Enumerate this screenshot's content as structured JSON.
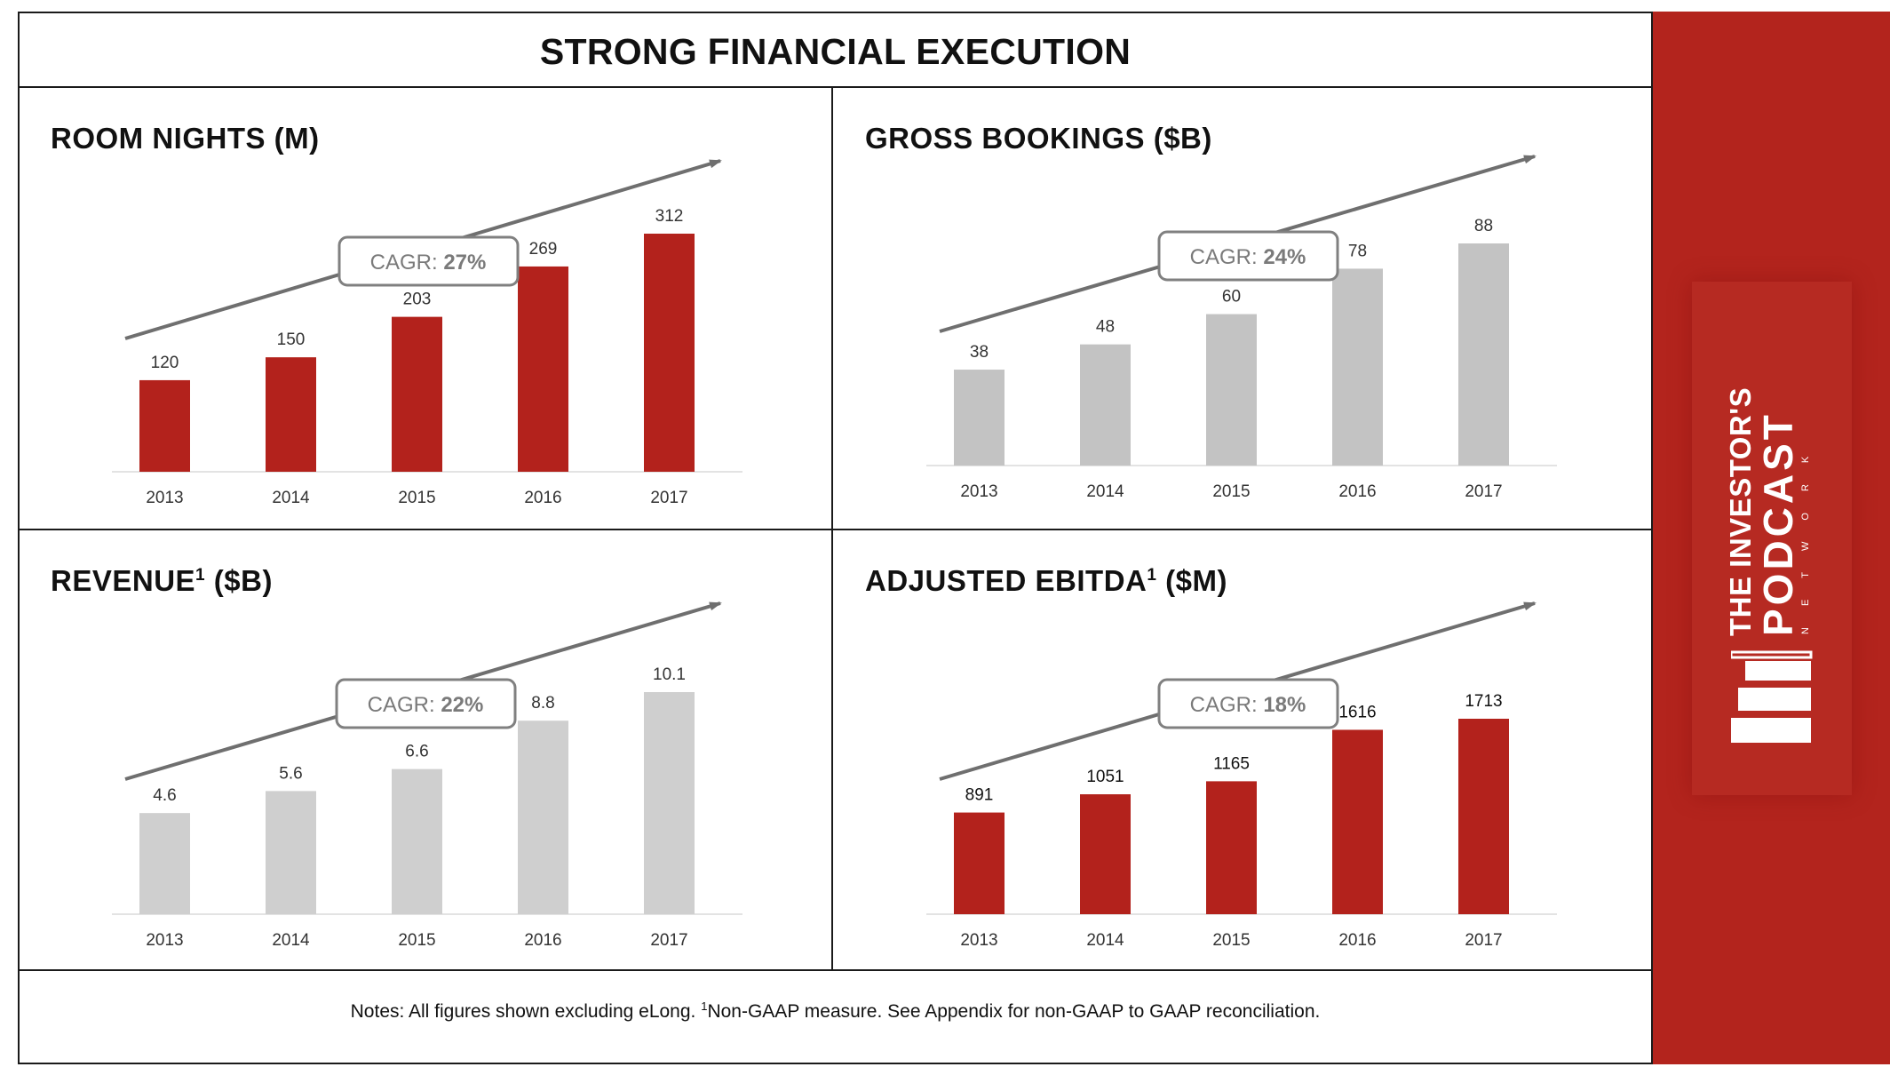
{
  "title": "STRONG FINANCIAL EXECUTION",
  "footnote": {
    "before": "Notes: All figures shown excluding eLong. ",
    "sup": "1",
    "after": "Non-GAAP measure. See Appendix for non-GAAP to GAAP reconciliation."
  },
  "colors": {
    "red": "#b3221c",
    "gray": "#c3c3c3",
    "arrow": "#6f6f6f",
    "sidebar": "#b3241d"
  },
  "logo": {
    "line1": "THE INVESTOR'S",
    "line2": "PODCAST",
    "line3": "NETWORK",
    "icon": "books-podcast-icon"
  },
  "chart_data": [
    {
      "type": "bar",
      "title_main": "ROOM NIGHTS",
      "title_sup": "",
      "title_unit": " (M)",
      "categories": [
        "2013",
        "2014",
        "2015",
        "2016",
        "2017"
      ],
      "values": [
        120,
        150,
        203,
        269,
        312
      ],
      "value_labels": [
        "120",
        "150",
        "203",
        "269",
        "312"
      ],
      "cagr_label": "CAGR: ",
      "cagr_value": "27%",
      "bar_color": "#b3221c",
      "label_color": "#333333"
    },
    {
      "type": "bar",
      "title_main": "GROSS BOOKINGS",
      "title_sup": "",
      "title_unit": " ($B)",
      "categories": [
        "2013",
        "2014",
        "2015",
        "2016",
        "2017"
      ],
      "values": [
        38,
        48,
        60,
        78,
        88
      ],
      "value_labels": [
        "38",
        "48",
        "60",
        "78",
        "88"
      ],
      "cagr_label": "CAGR: ",
      "cagr_value": "24%",
      "bar_color": "#c3c3c3",
      "label_color": "#333333"
    },
    {
      "type": "bar",
      "title_main": "REVENUE",
      "title_sup": "1",
      "title_unit": " ($B)",
      "categories": [
        "2013",
        "2014",
        "2015",
        "2016",
        "2017"
      ],
      "values": [
        4.6,
        5.6,
        6.6,
        8.8,
        10.1
      ],
      "value_labels": [
        "4.6",
        "5.6",
        "6.6",
        "8.8",
        "10.1"
      ],
      "cagr_label": "CAGR: ",
      "cagr_value": "22%",
      "bar_color": "#cfcfcf",
      "label_color": "#333333"
    },
    {
      "type": "bar",
      "title_main": "ADJUSTED EBITDA",
      "title_sup": "1",
      "title_unit": " ($M)",
      "categories": [
        "2013",
        "2014",
        "2015",
        "2016",
        "2017"
      ],
      "values": [
        891,
        1051,
        1165,
        1616,
        1713
      ],
      "value_labels": [
        "891",
        "1051",
        "1165",
        "1616",
        "1713"
      ],
      "cagr_label": "CAGR: ",
      "cagr_value": "18%",
      "bar_color": "#b3221c",
      "label_color": "#111111"
    }
  ]
}
